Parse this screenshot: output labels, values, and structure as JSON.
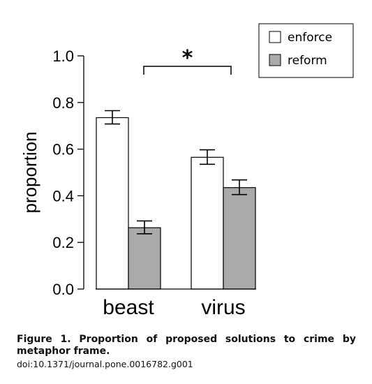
{
  "chart_data": {
    "type": "bar",
    "categories": [
      "beast",
      "virus"
    ],
    "series": [
      {
        "name": "enforce",
        "color": "#ffffff",
        "values": [
          0.735,
          0.565
        ],
        "error": [
          [
            0.708,
            0.765
          ],
          [
            0.535,
            0.597
          ]
        ]
      },
      {
        "name": "reform",
        "color": "#aaaaaa",
        "values": [
          0.263,
          0.435
        ],
        "error": [
          [
            0.237,
            0.292
          ],
          [
            0.405,
            0.468
          ]
        ]
      }
    ],
    "ylabel": "proportion",
    "ylim": [
      0,
      1
    ],
    "yticks": [
      "0.0",
      "0.2",
      "0.4",
      "0.6",
      "0.8",
      "1.0"
    ],
    "significance_marker": "*",
    "legend_position": "top-right"
  },
  "caption": {
    "title": "Figure 1. Proportion of proposed solutions to crime by metaphor frame.",
    "doi": "doi:10.1371/journal.pone.0016782.g001"
  }
}
